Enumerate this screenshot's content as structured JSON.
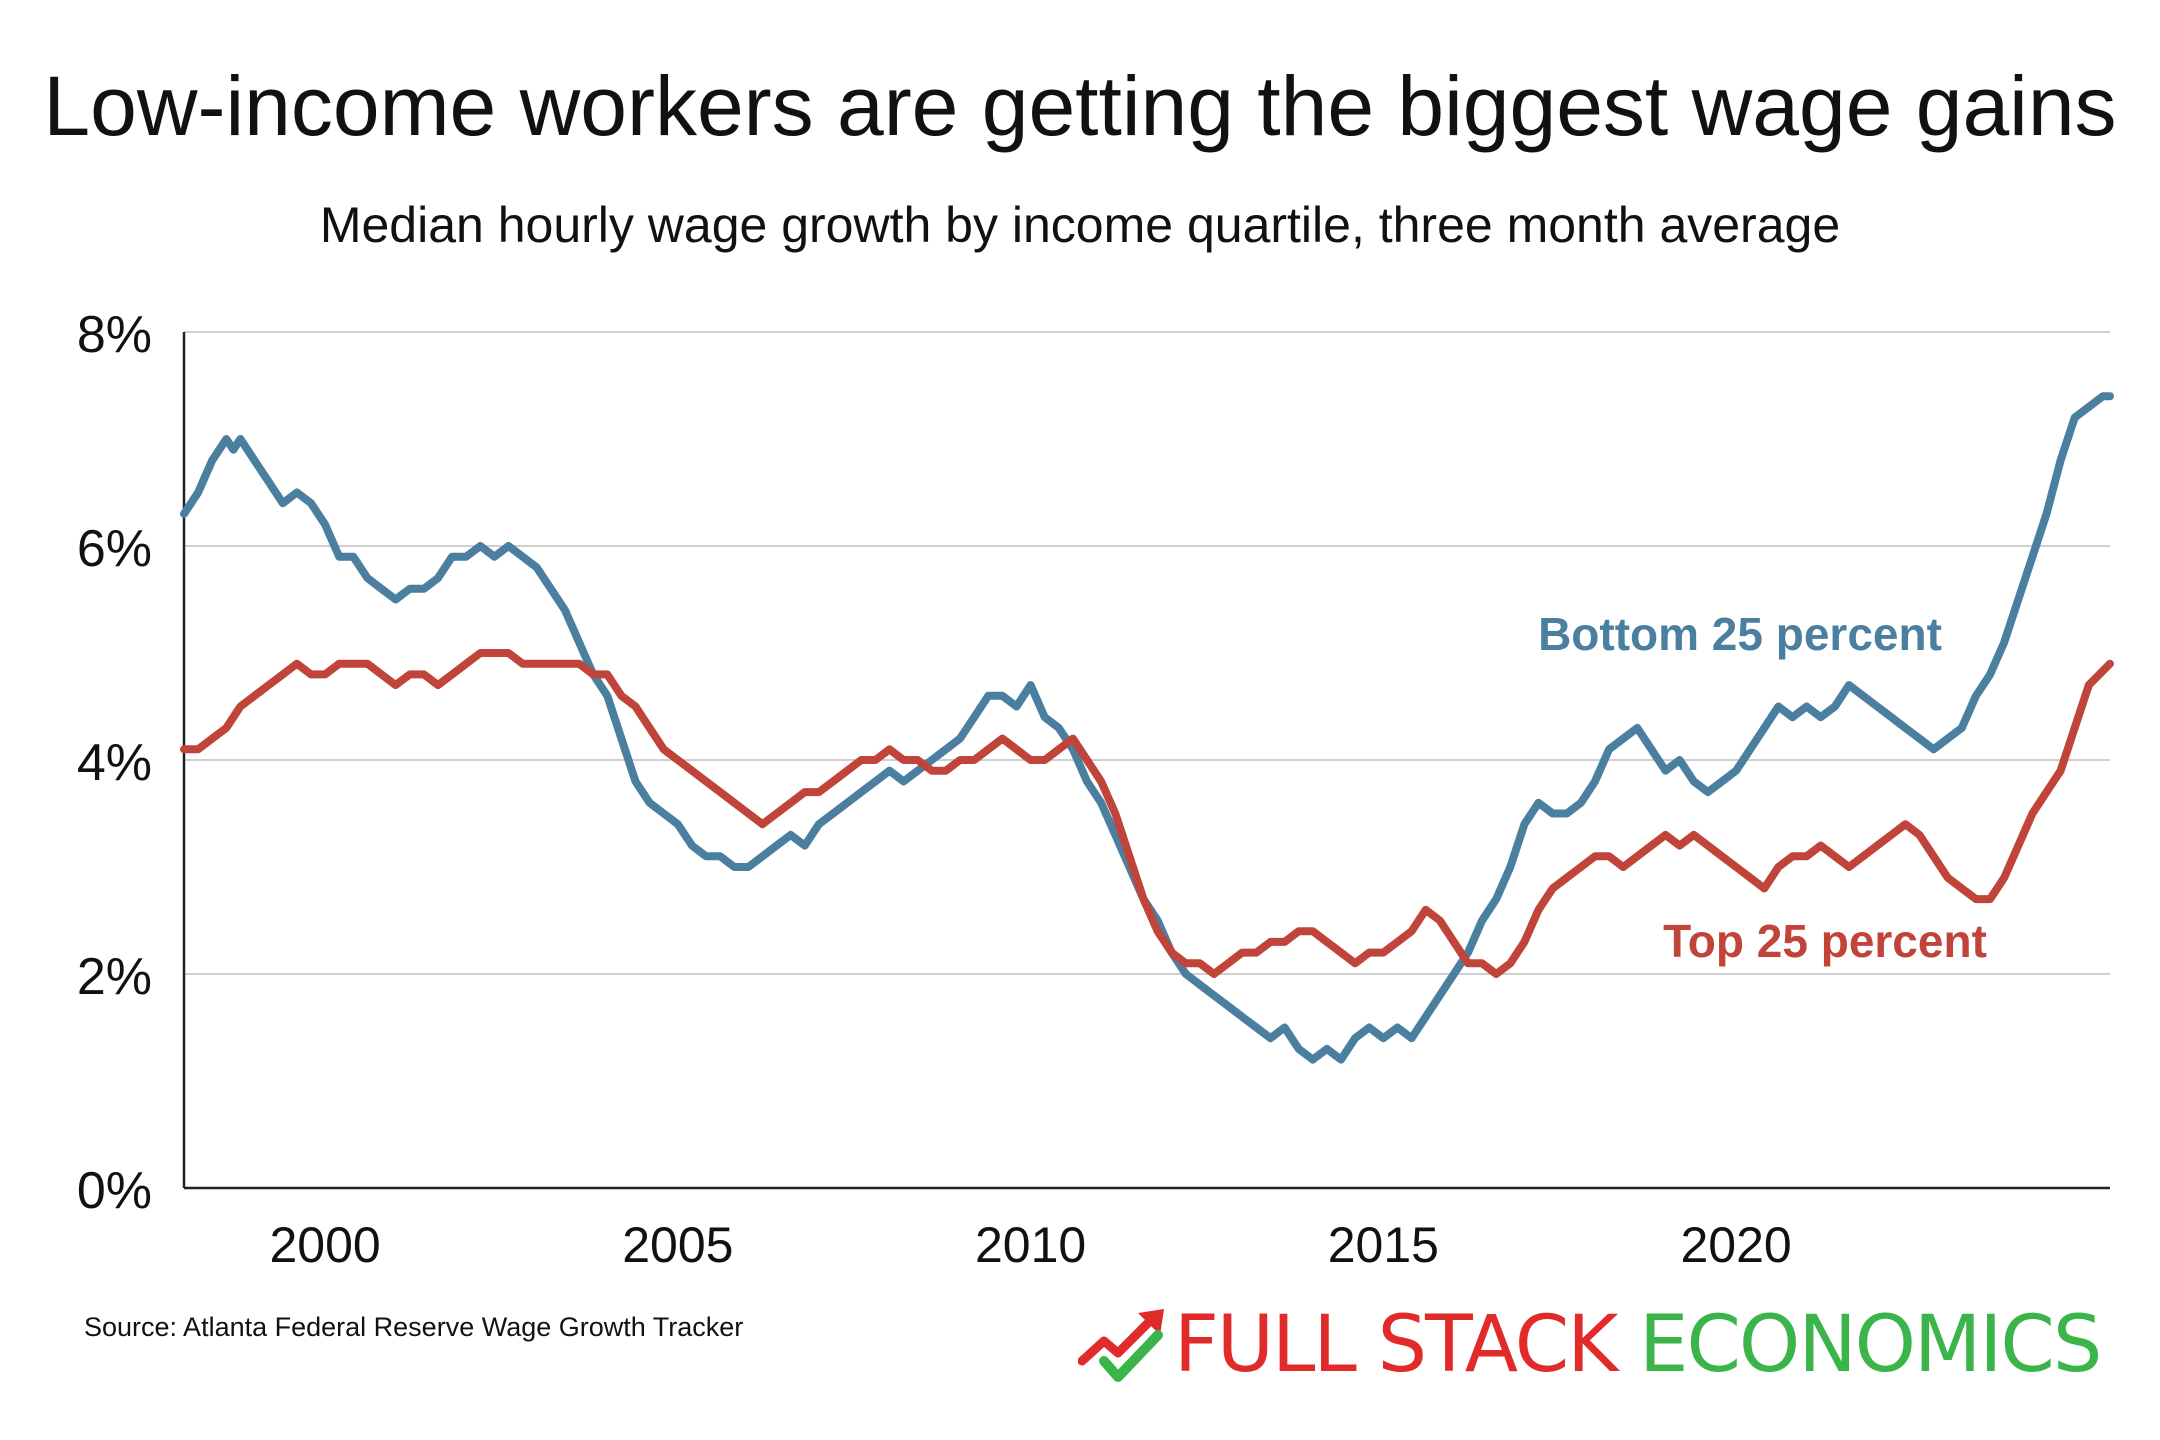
{
  "chart_data": {
    "type": "line",
    "title": "Low-income workers are getting the biggest wage gains",
    "subtitle": "Median hourly wage growth by income quartile, three month average",
    "xlabel": "",
    "ylabel": "",
    "xlim": [
      1998.0,
      2023.0
    ],
    "ylim": [
      0,
      8
    ],
    "x_ticks": [
      2000,
      2005,
      2010,
      2015,
      2020
    ],
    "x_tick_labels": [
      "2000",
      "2005",
      "2010",
      "2015",
      "2020"
    ],
    "y_ticks": [
      0,
      2,
      4,
      6,
      8
    ],
    "y_tick_labels": [
      "0%",
      "2%",
      "4%",
      "6%",
      "8%"
    ],
    "grid": "horizontal",
    "series": [
      {
        "name": "Bottom 25 percent",
        "color": "#4a7fa0",
        "points": [
          [
            1998.0,
            6.3
          ],
          [
            1998.2,
            6.5
          ],
          [
            1998.4,
            6.8
          ],
          [
            1998.6,
            7.0
          ],
          [
            1998.7,
            6.9
          ],
          [
            1998.8,
            7.0
          ],
          [
            1999.0,
            6.8
          ],
          [
            1999.2,
            6.6
          ],
          [
            1999.4,
            6.4
          ],
          [
            1999.6,
            6.5
          ],
          [
            1999.8,
            6.4
          ],
          [
            2000.0,
            6.2
          ],
          [
            2000.2,
            5.9
          ],
          [
            2000.4,
            5.9
          ],
          [
            2000.6,
            5.7
          ],
          [
            2000.8,
            5.6
          ],
          [
            2001.0,
            5.5
          ],
          [
            2001.2,
            5.6
          ],
          [
            2001.4,
            5.6
          ],
          [
            2001.6,
            5.7
          ],
          [
            2001.8,
            5.9
          ],
          [
            2002.0,
            5.9
          ],
          [
            2002.2,
            6.0
          ],
          [
            2002.4,
            5.9
          ],
          [
            2002.6,
            6.0
          ],
          [
            2002.8,
            5.9
          ],
          [
            2003.0,
            5.8
          ],
          [
            2003.2,
            5.6
          ],
          [
            2003.4,
            5.4
          ],
          [
            2003.6,
            5.1
          ],
          [
            2003.8,
            4.8
          ],
          [
            2004.0,
            4.6
          ],
          [
            2004.2,
            4.2
          ],
          [
            2004.4,
            3.8
          ],
          [
            2004.6,
            3.6
          ],
          [
            2004.8,
            3.5
          ],
          [
            2005.0,
            3.4
          ],
          [
            2005.2,
            3.2
          ],
          [
            2005.4,
            3.1
          ],
          [
            2005.6,
            3.1
          ],
          [
            2005.8,
            3.0
          ],
          [
            2006.0,
            3.0
          ],
          [
            2006.2,
            3.1
          ],
          [
            2006.4,
            3.2
          ],
          [
            2006.6,
            3.3
          ],
          [
            2006.8,
            3.2
          ],
          [
            2007.0,
            3.4
          ],
          [
            2007.2,
            3.5
          ],
          [
            2007.4,
            3.6
          ],
          [
            2007.6,
            3.7
          ],
          [
            2007.8,
            3.8
          ],
          [
            2008.0,
            3.9
          ],
          [
            2008.2,
            3.8
          ],
          [
            2008.4,
            3.9
          ],
          [
            2008.6,
            4.0
          ],
          [
            2008.8,
            4.1
          ],
          [
            2009.0,
            4.2
          ],
          [
            2009.2,
            4.4
          ],
          [
            2009.4,
            4.6
          ],
          [
            2009.6,
            4.6
          ],
          [
            2009.8,
            4.5
          ],
          [
            2010.0,
            4.7
          ],
          [
            2010.2,
            4.4
          ],
          [
            2010.4,
            4.3
          ],
          [
            2010.6,
            4.1
          ],
          [
            2010.8,
            3.8
          ],
          [
            2011.0,
            3.6
          ],
          [
            2011.2,
            3.3
          ],
          [
            2011.4,
            3.0
          ],
          [
            2011.6,
            2.7
          ],
          [
            2011.8,
            2.5
          ],
          [
            2012.0,
            2.2
          ],
          [
            2012.2,
            2.0
          ],
          [
            2012.4,
            1.9
          ],
          [
            2012.6,
            1.8
          ],
          [
            2012.8,
            1.7
          ],
          [
            2013.0,
            1.6
          ],
          [
            2013.2,
            1.5
          ],
          [
            2013.4,
            1.4
          ],
          [
            2013.6,
            1.5
          ],
          [
            2013.8,
            1.3
          ],
          [
            2014.0,
            1.2
          ],
          [
            2014.2,
            1.3
          ],
          [
            2014.4,
            1.2
          ],
          [
            2014.6,
            1.4
          ],
          [
            2014.8,
            1.5
          ],
          [
            2015.0,
            1.4
          ],
          [
            2015.2,
            1.5
          ],
          [
            2015.4,
            1.4
          ],
          [
            2015.6,
            1.6
          ],
          [
            2015.8,
            1.8
          ],
          [
            2016.0,
            2.0
          ],
          [
            2016.2,
            2.2
          ],
          [
            2016.4,
            2.5
          ],
          [
            2016.6,
            2.7
          ],
          [
            2016.8,
            3.0
          ],
          [
            2017.0,
            3.4
          ],
          [
            2017.2,
            3.6
          ],
          [
            2017.4,
            3.5
          ],
          [
            2017.6,
            3.5
          ],
          [
            2017.8,
            3.6
          ],
          [
            2018.0,
            3.8
          ],
          [
            2018.2,
            4.1
          ],
          [
            2018.4,
            4.2
          ],
          [
            2018.6,
            4.3
          ],
          [
            2018.8,
            4.1
          ],
          [
            2019.0,
            3.9
          ],
          [
            2019.2,
            4.0
          ],
          [
            2019.4,
            3.8
          ],
          [
            2019.6,
            3.7
          ],
          [
            2019.8,
            3.8
          ],
          [
            2020.0,
            3.9
          ],
          [
            2020.2,
            4.1
          ],
          [
            2020.4,
            4.3
          ],
          [
            2020.6,
            4.5
          ],
          [
            2020.8,
            4.4
          ],
          [
            2021.0,
            4.5
          ],
          [
            2021.2,
            4.4
          ],
          [
            2021.4,
            4.5
          ],
          [
            2021.6,
            4.7
          ],
          [
            2021.8,
            4.6
          ],
          [
            2022.0,
            4.5
          ],
          [
            2022.2,
            4.4
          ],
          [
            2022.4,
            4.3
          ],
          [
            2022.6,
            4.2
          ],
          [
            2022.8,
            4.1
          ],
          [
            2023.0,
            4.2
          ],
          [
            2023.2,
            4.3
          ],
          [
            2023.4,
            4.6
          ],
          [
            2023.6,
            4.8
          ],
          [
            2023.8,
            5.1
          ],
          [
            2024.0,
            5.5
          ],
          [
            2024.2,
            5.9
          ],
          [
            2024.4,
            6.3
          ],
          [
            2024.6,
            6.8
          ],
          [
            2024.8,
            7.2
          ],
          [
            2025.0,
            7.3
          ],
          [
            2025.2,
            7.4
          ],
          [
            2025.3,
            7.4
          ]
        ]
      },
      {
        "name": "Top 25 percent",
        "color": "#c0443a",
        "points": [
          [
            1998.0,
            4.1
          ],
          [
            1998.2,
            4.1
          ],
          [
            1998.4,
            4.2
          ],
          [
            1998.6,
            4.3
          ],
          [
            1998.8,
            4.5
          ],
          [
            1999.0,
            4.6
          ],
          [
            1999.2,
            4.7
          ],
          [
            1999.4,
            4.8
          ],
          [
            1999.6,
            4.9
          ],
          [
            1999.8,
            4.8
          ],
          [
            2000.0,
            4.8
          ],
          [
            2000.2,
            4.9
          ],
          [
            2000.4,
            4.9
          ],
          [
            2000.6,
            4.9
          ],
          [
            2000.8,
            4.8
          ],
          [
            2001.0,
            4.7
          ],
          [
            2001.2,
            4.8
          ],
          [
            2001.4,
            4.8
          ],
          [
            2001.6,
            4.7
          ],
          [
            2001.8,
            4.8
          ],
          [
            2002.0,
            4.9
          ],
          [
            2002.2,
            5.0
          ],
          [
            2002.4,
            5.0
          ],
          [
            2002.6,
            5.0
          ],
          [
            2002.8,
            4.9
          ],
          [
            2003.0,
            4.9
          ],
          [
            2003.2,
            4.9
          ],
          [
            2003.4,
            4.9
          ],
          [
            2003.6,
            4.9
          ],
          [
            2003.8,
            4.8
          ],
          [
            2004.0,
            4.8
          ],
          [
            2004.2,
            4.6
          ],
          [
            2004.4,
            4.5
          ],
          [
            2004.6,
            4.3
          ],
          [
            2004.8,
            4.1
          ],
          [
            2005.0,
            4.0
          ],
          [
            2005.2,
            3.9
          ],
          [
            2005.4,
            3.8
          ],
          [
            2005.6,
            3.7
          ],
          [
            2005.8,
            3.6
          ],
          [
            2006.0,
            3.5
          ],
          [
            2006.2,
            3.4
          ],
          [
            2006.4,
            3.5
          ],
          [
            2006.6,
            3.6
          ],
          [
            2006.8,
            3.7
          ],
          [
            2007.0,
            3.7
          ],
          [
            2007.2,
            3.8
          ],
          [
            2007.4,
            3.9
          ],
          [
            2007.6,
            4.0
          ],
          [
            2007.8,
            4.0
          ],
          [
            2008.0,
            4.1
          ],
          [
            2008.2,
            4.0
          ],
          [
            2008.4,
            4.0
          ],
          [
            2008.6,
            3.9
          ],
          [
            2008.8,
            3.9
          ],
          [
            2009.0,
            4.0
          ],
          [
            2009.2,
            4.0
          ],
          [
            2009.4,
            4.1
          ],
          [
            2009.6,
            4.2
          ],
          [
            2009.8,
            4.1
          ],
          [
            2010.0,
            4.0
          ],
          [
            2010.2,
            4.0
          ],
          [
            2010.4,
            4.1
          ],
          [
            2010.6,
            4.2
          ],
          [
            2010.8,
            4.0
          ],
          [
            2011.0,
            3.8
          ],
          [
            2011.2,
            3.5
          ],
          [
            2011.4,
            3.1
          ],
          [
            2011.6,
            2.7
          ],
          [
            2011.8,
            2.4
          ],
          [
            2012.0,
            2.2
          ],
          [
            2012.2,
            2.1
          ],
          [
            2012.4,
            2.1
          ],
          [
            2012.6,
            2.0
          ],
          [
            2012.8,
            2.1
          ],
          [
            2013.0,
            2.2
          ],
          [
            2013.2,
            2.2
          ],
          [
            2013.4,
            2.3
          ],
          [
            2013.6,
            2.3
          ],
          [
            2013.8,
            2.4
          ],
          [
            2014.0,
            2.4
          ],
          [
            2014.2,
            2.3
          ],
          [
            2014.4,
            2.2
          ],
          [
            2014.6,
            2.1
          ],
          [
            2014.8,
            2.2
          ],
          [
            2015.0,
            2.2
          ],
          [
            2015.2,
            2.3
          ],
          [
            2015.4,
            2.4
          ],
          [
            2015.6,
            2.6
          ],
          [
            2015.8,
            2.5
          ],
          [
            2016.0,
            2.3
          ],
          [
            2016.2,
            2.1
          ],
          [
            2016.4,
            2.1
          ],
          [
            2016.6,
            2.0
          ],
          [
            2016.8,
            2.1
          ],
          [
            2017.0,
            2.3
          ],
          [
            2017.2,
            2.6
          ],
          [
            2017.4,
            2.8
          ],
          [
            2017.6,
            2.9
          ],
          [
            2017.8,
            3.0
          ],
          [
            2018.0,
            3.1
          ],
          [
            2018.2,
            3.1
          ],
          [
            2018.4,
            3.0
          ],
          [
            2018.6,
            3.1
          ],
          [
            2018.8,
            3.2
          ],
          [
            2019.0,
            3.3
          ],
          [
            2019.2,
            3.2
          ],
          [
            2019.4,
            3.3
          ],
          [
            2019.6,
            3.2
          ],
          [
            2019.8,
            3.1
          ],
          [
            2020.0,
            3.0
          ],
          [
            2020.2,
            2.9
          ],
          [
            2020.4,
            2.8
          ],
          [
            2020.6,
            3.0
          ],
          [
            2020.8,
            3.1
          ],
          [
            2021.0,
            3.1
          ],
          [
            2021.2,
            3.2
          ],
          [
            2021.4,
            3.1
          ],
          [
            2021.6,
            3.0
          ],
          [
            2021.8,
            3.1
          ],
          [
            2022.0,
            3.2
          ],
          [
            2022.2,
            3.3
          ],
          [
            2022.4,
            3.4
          ],
          [
            2022.6,
            3.3
          ],
          [
            2022.8,
            3.1
          ],
          [
            2023.0,
            2.9
          ],
          [
            2023.2,
            2.8
          ],
          [
            2023.4,
            2.7
          ],
          [
            2023.6,
            2.7
          ],
          [
            2023.8,
            2.9
          ],
          [
            2024.0,
            3.2
          ],
          [
            2024.2,
            3.5
          ],
          [
            2024.4,
            3.7
          ],
          [
            2024.6,
            3.9
          ],
          [
            2024.8,
            4.3
          ],
          [
            2025.0,
            4.7
          ],
          [
            2025.3,
            4.9
          ]
        ]
      }
    ],
    "annotations": [
      {
        "text": "Bottom 25 percent",
        "series": 0
      },
      {
        "text": "Top 25 percent",
        "series": 1
      }
    ]
  },
  "source": "Source: Atlanta Federal Reserve Wage Growth Tracker",
  "logo": {
    "part1": "FULL STACK",
    "part2": "ECONOMICS"
  }
}
